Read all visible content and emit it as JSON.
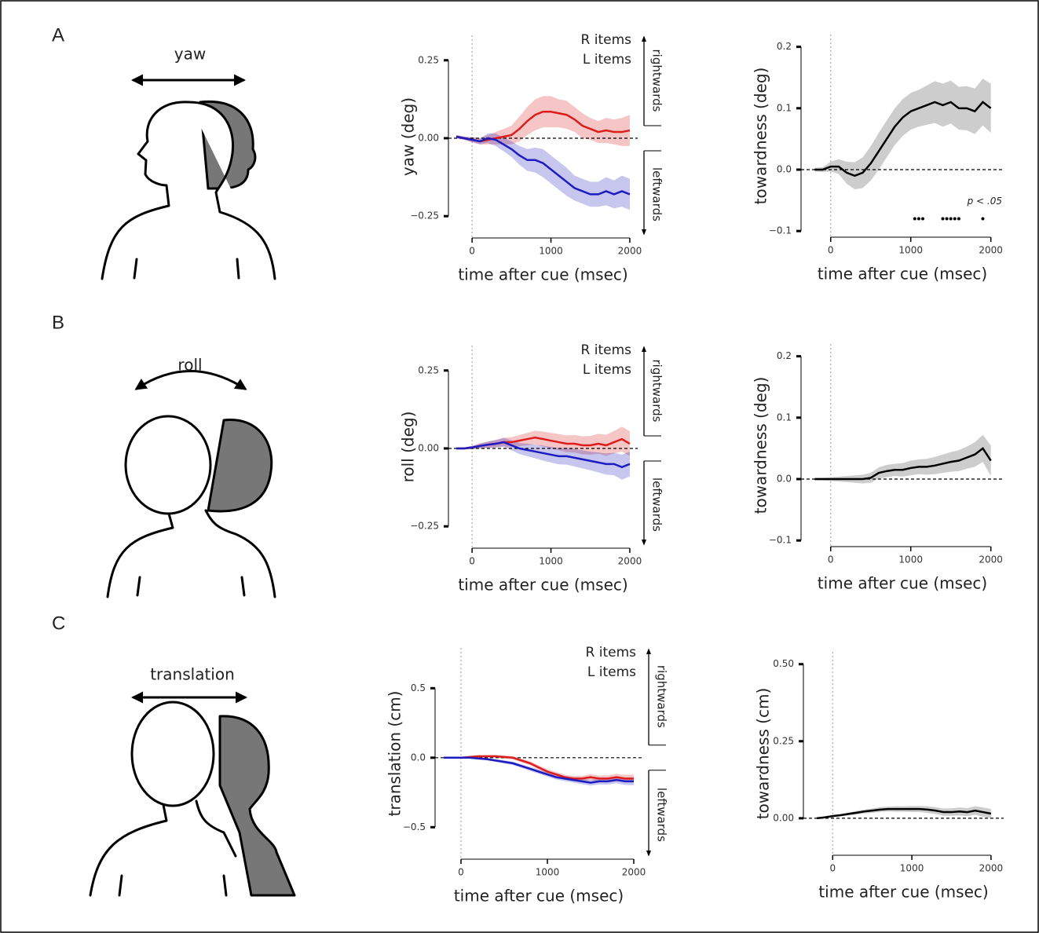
{
  "panels": [
    {
      "letter": "A",
      "motion": "yaw"
    },
    {
      "letter": "B",
      "motion": "roll"
    },
    {
      "letter": "C",
      "motion": "translation"
    }
  ],
  "chart_data": [
    {
      "type": "line",
      "y_label": "yaw (deg)",
      "x_label": "time after cue (msec)",
      "x": [
        -200,
        -100,
        0,
        100,
        200,
        300,
        400,
        500,
        600,
        700,
        800,
        900,
        1000,
        1100,
        1200,
        1300,
        1400,
        1500,
        1600,
        1700,
        1800,
        1900,
        2000
      ],
      "series": [
        {
          "name": "R items",
          "color": "#dd1c1c",
          "values": [
            0.005,
            0,
            -0.005,
            -0.01,
            -0.005,
            0,
            0.005,
            0.01,
            0.03,
            0.055,
            0.075,
            0.085,
            0.085,
            0.08,
            0.075,
            0.06,
            0.04,
            0.03,
            0.02,
            0.025,
            0.02,
            0.02,
            0.025
          ],
          "errors": [
            0.005,
            0.005,
            0.008,
            0.01,
            0.015,
            0.02,
            0.025,
            0.03,
            0.04,
            0.045,
            0.05,
            0.05,
            0.05,
            0.045,
            0.045,
            0.04,
            0.04,
            0.035,
            0.035,
            0.04,
            0.04,
            0.045,
            0.05
          ]
        },
        {
          "name": "L items",
          "color": "#1c1cc0",
          "values": [
            0.005,
            0,
            -0.005,
            -0.01,
            0,
            -0.005,
            -0.02,
            -0.035,
            -0.055,
            -0.07,
            -0.07,
            -0.08,
            -0.1,
            -0.12,
            -0.14,
            -0.16,
            -0.17,
            -0.18,
            -0.18,
            -0.17,
            -0.18,
            -0.17,
            -0.18
          ],
          "errors": [
            0.005,
            0.005,
            0.008,
            0.01,
            0.015,
            0.02,
            0.022,
            0.025,
            0.03,
            0.035,
            0.04,
            0.045,
            0.045,
            0.045,
            0.045,
            0.04,
            0.04,
            0.04,
            0.04,
            0.045,
            0.045,
            0.05,
            0.05
          ]
        }
      ],
      "xlim": [
        -300,
        2100
      ],
      "ylim": [
        -0.32,
        0.33
      ],
      "xticks": [
        0,
        1000,
        2000
      ],
      "yticks": [
        {
          "value": -0.25,
          "label": "−0.25"
        },
        {
          "value": 0,
          "label": "0.00"
        },
        0.25
      ],
      "hline": 0,
      "vline": 0,
      "annotations": [
        "rightwards",
        "leftwards"
      ]
    },
    {
      "type": "line",
      "y_label": "towardness (deg)",
      "x_label": "time after cue (msec)",
      "x": [
        -200,
        -100,
        0,
        100,
        200,
        300,
        400,
        500,
        600,
        700,
        800,
        900,
        1000,
        1100,
        1200,
        1300,
        1400,
        1500,
        1600,
        1700,
        1800,
        1900,
        2000
      ],
      "series": [
        {
          "color": "#000000",
          "values": [
            0,
            0,
            0.005,
            0.005,
            -0.005,
            -0.01,
            -0.005,
            0.01,
            0.03,
            0.05,
            0.07,
            0.085,
            0.095,
            0.1,
            0.105,
            0.11,
            0.105,
            0.11,
            0.1,
            0.1,
            0.095,
            0.11,
            0.1
          ],
          "errors": [
            0.003,
            0.004,
            0.008,
            0.012,
            0.018,
            0.022,
            0.025,
            0.028,
            0.03,
            0.03,
            0.03,
            0.03,
            0.03,
            0.03,
            0.032,
            0.034,
            0.035,
            0.035,
            0.035,
            0.036,
            0.037,
            0.038,
            0.04
          ]
        }
      ],
      "xlim": [
        -370,
        2160
      ],
      "ylim": [
        -0.11,
        0.22
      ],
      "xticks": [
        0,
        1000,
        2000
      ],
      "yticks": [
        {
          "value": -0.1,
          "label": "−0.1"
        },
        {
          "value": 0,
          "label": "0.0"
        },
        0.1,
        0.2
      ],
      "hline": 0,
      "vline": 0,
      "significance": {
        "label": "p < .05",
        "y": -0.08,
        "x": [
          1050,
          1100,
          1150,
          1400,
          1450,
          1500,
          1550,
          1600,
          1900
        ]
      }
    },
    {
      "type": "line",
      "y_label": "roll (deg)",
      "x_label": "time after cue (msec)",
      "x": [
        -200,
        -100,
        0,
        100,
        200,
        300,
        400,
        500,
        600,
        700,
        800,
        900,
        1000,
        1100,
        1200,
        1300,
        1400,
        1500,
        1600,
        1700,
        1800,
        1900,
        2000
      ],
      "series": [
        {
          "name": "R items",
          "color": "#dd1c1c",
          "values": [
            0,
            0,
            0.003,
            0.008,
            0.012,
            0.015,
            0.02,
            0.02,
            0.025,
            0.03,
            0.035,
            0.03,
            0.025,
            0.02,
            0.015,
            0.015,
            0.01,
            0.01,
            0.015,
            0.01,
            0.02,
            0.03,
            0.015
          ],
          "errors": [
            0.002,
            0.003,
            0.005,
            0.008,
            0.01,
            0.012,
            0.014,
            0.016,
            0.018,
            0.02,
            0.022,
            0.024,
            0.025,
            0.026,
            0.027,
            0.028,
            0.029,
            0.03,
            0.032,
            0.034,
            0.036,
            0.04,
            0.04
          ]
        },
        {
          "name": "L items",
          "color": "#1c1cc0",
          "values": [
            0,
            0,
            0.003,
            0.008,
            0.012,
            0.015,
            0.02,
            0.01,
            0,
            -0.005,
            -0.01,
            -0.015,
            -0.02,
            -0.025,
            -0.025,
            -0.03,
            -0.035,
            -0.04,
            -0.045,
            -0.05,
            -0.05,
            -0.06,
            -0.05
          ],
          "errors": [
            0.002,
            0.003,
            0.005,
            0.008,
            0.01,
            0.012,
            0.014,
            0.016,
            0.018,
            0.02,
            0.022,
            0.024,
            0.025,
            0.026,
            0.027,
            0.028,
            0.029,
            0.03,
            0.032,
            0.034,
            0.036,
            0.04,
            0.04
          ]
        }
      ],
      "xlim": [
        -300,
        2100
      ],
      "ylim": [
        -0.32,
        0.33
      ],
      "xticks": [
        0,
        1000,
        2000
      ],
      "yticks": [
        {
          "value": -0.25,
          "label": "−0.25"
        },
        {
          "value": 0,
          "label": "0.00"
        },
        0.25
      ],
      "hline": 0,
      "vline": 0,
      "annotations": [
        "rightwards",
        "leftwards"
      ]
    },
    {
      "type": "line",
      "y_label": "towardness (deg)",
      "x_label": "time after cue (msec)",
      "x": [
        -200,
        -100,
        0,
        100,
        200,
        300,
        400,
        500,
        600,
        700,
        800,
        900,
        1000,
        1100,
        1200,
        1300,
        1400,
        1500,
        1600,
        1700,
        1800,
        1900,
        2000
      ],
      "series": [
        {
          "color": "#000000",
          "values": [
            0,
            0,
            0,
            0,
            0,
            0,
            0,
            0.002,
            0.01,
            0.013,
            0.015,
            0.015,
            0.018,
            0.02,
            0.02,
            0.022,
            0.025,
            0.028,
            0.03,
            0.035,
            0.04,
            0.05,
            0.03
          ],
          "errors": [
            0.002,
            0.002,
            0.003,
            0.004,
            0.005,
            0.006,
            0.007,
            0.008,
            0.009,
            0.01,
            0.01,
            0.011,
            0.012,
            0.012,
            0.013,
            0.014,
            0.015,
            0.016,
            0.017,
            0.018,
            0.02,
            0.022,
            0.025
          ]
        }
      ],
      "xlim": [
        -370,
        2160
      ],
      "ylim": [
        -0.11,
        0.22
      ],
      "xticks": [
        0,
        1000,
        2000
      ],
      "yticks": [
        {
          "value": -0.1,
          "label": "−0.1"
        },
        {
          "value": 0,
          "label": "0.0"
        },
        0.1,
        0.2
      ],
      "hline": 0,
      "vline": 0
    },
    {
      "type": "line",
      "y_label": "translation (cm)",
      "x_label": "time after cue (msec)",
      "x": [
        -200,
        -100,
        0,
        100,
        200,
        300,
        400,
        500,
        600,
        700,
        800,
        900,
        1000,
        1100,
        1200,
        1300,
        1400,
        1500,
        1600,
        1700,
        1800,
        1900,
        2000
      ],
      "series": [
        {
          "name": "R items",
          "color": "#dd1c1c",
          "values": [
            0,
            0,
            0,
            0.005,
            0.01,
            0.01,
            0.01,
            0.005,
            0,
            -0.02,
            -0.04,
            -0.07,
            -0.1,
            -0.12,
            -0.14,
            -0.15,
            -0.15,
            -0.14,
            -0.15,
            -0.15,
            -0.14,
            -0.15,
            -0.15
          ],
          "errors": [
            0.003,
            0.004,
            0.005,
            0.006,
            0.008,
            0.009,
            0.01,
            0.011,
            0.012,
            0.013,
            0.014,
            0.015,
            0.016,
            0.017,
            0.018,
            0.019,
            0.02,
            0.021,
            0.022,
            0.023,
            0.024,
            0.026,
            0.028
          ]
        },
        {
          "name": "L items",
          "color": "#1c1cc0",
          "values": [
            0,
            0,
            0,
            0,
            -0.005,
            -0.01,
            -0.02,
            -0.03,
            -0.04,
            -0.06,
            -0.08,
            -0.1,
            -0.12,
            -0.14,
            -0.15,
            -0.16,
            -0.17,
            -0.18,
            -0.17,
            -0.17,
            -0.16,
            -0.17,
            -0.17
          ],
          "errors": [
            0.003,
            0.004,
            0.005,
            0.006,
            0.008,
            0.009,
            0.01,
            0.011,
            0.012,
            0.013,
            0.014,
            0.015,
            0.016,
            0.017,
            0.018,
            0.019,
            0.02,
            0.021,
            0.022,
            0.023,
            0.024,
            0.026,
            0.028
          ]
        }
      ],
      "xlim": [
        -300,
        2100
      ],
      "ylim": [
        -0.73,
        0.79
      ],
      "xticks": [
        0,
        1000,
        2000
      ],
      "yticks": [
        {
          "value": -0.5,
          "label": "−0.5"
        },
        {
          "value": 0,
          "label": "0.0"
        },
        0.5
      ],
      "hline": 0,
      "vline": 0,
      "annotations": [
        "rightwards",
        "leftwards"
      ]
    },
    {
      "type": "line",
      "y_label": "towardness (cm)",
      "x_label": "time after cue (msec)",
      "x": [
        -200,
        -100,
        0,
        100,
        200,
        300,
        400,
        500,
        600,
        700,
        800,
        900,
        1000,
        1100,
        1200,
        1300,
        1400,
        1500,
        1600,
        1700,
        1800,
        1900,
        2000
      ],
      "series": [
        {
          "color": "#000000",
          "values": [
            0,
            0.003,
            0.007,
            0.01,
            0.014,
            0.018,
            0.022,
            0.025,
            0.028,
            0.03,
            0.03,
            0.03,
            0.03,
            0.03,
            0.028,
            0.025,
            0.02,
            0.02,
            0.022,
            0.02,
            0.025,
            0.02,
            0.015
          ],
          "errors": [
            0.002,
            0.002,
            0.003,
            0.004,
            0.005,
            0.006,
            0.006,
            0.007,
            0.008,
            0.008,
            0.009,
            0.009,
            0.01,
            0.01,
            0.011,
            0.011,
            0.012,
            0.012,
            0.013,
            0.013,
            0.014,
            0.015,
            0.015
          ]
        }
      ],
      "xlim": [
        -370,
        2160
      ],
      "ylim": [
        -0.12,
        0.54
      ],
      "xticks": [
        0,
        1000,
        2000
      ],
      "yticks": [
        {
          "value": 0,
          "label": "0.00"
        },
        0.25,
        {
          "value": 0.5,
          "label": "0.50"
        }
      ],
      "hline": 0,
      "vline": 0
    }
  ]
}
